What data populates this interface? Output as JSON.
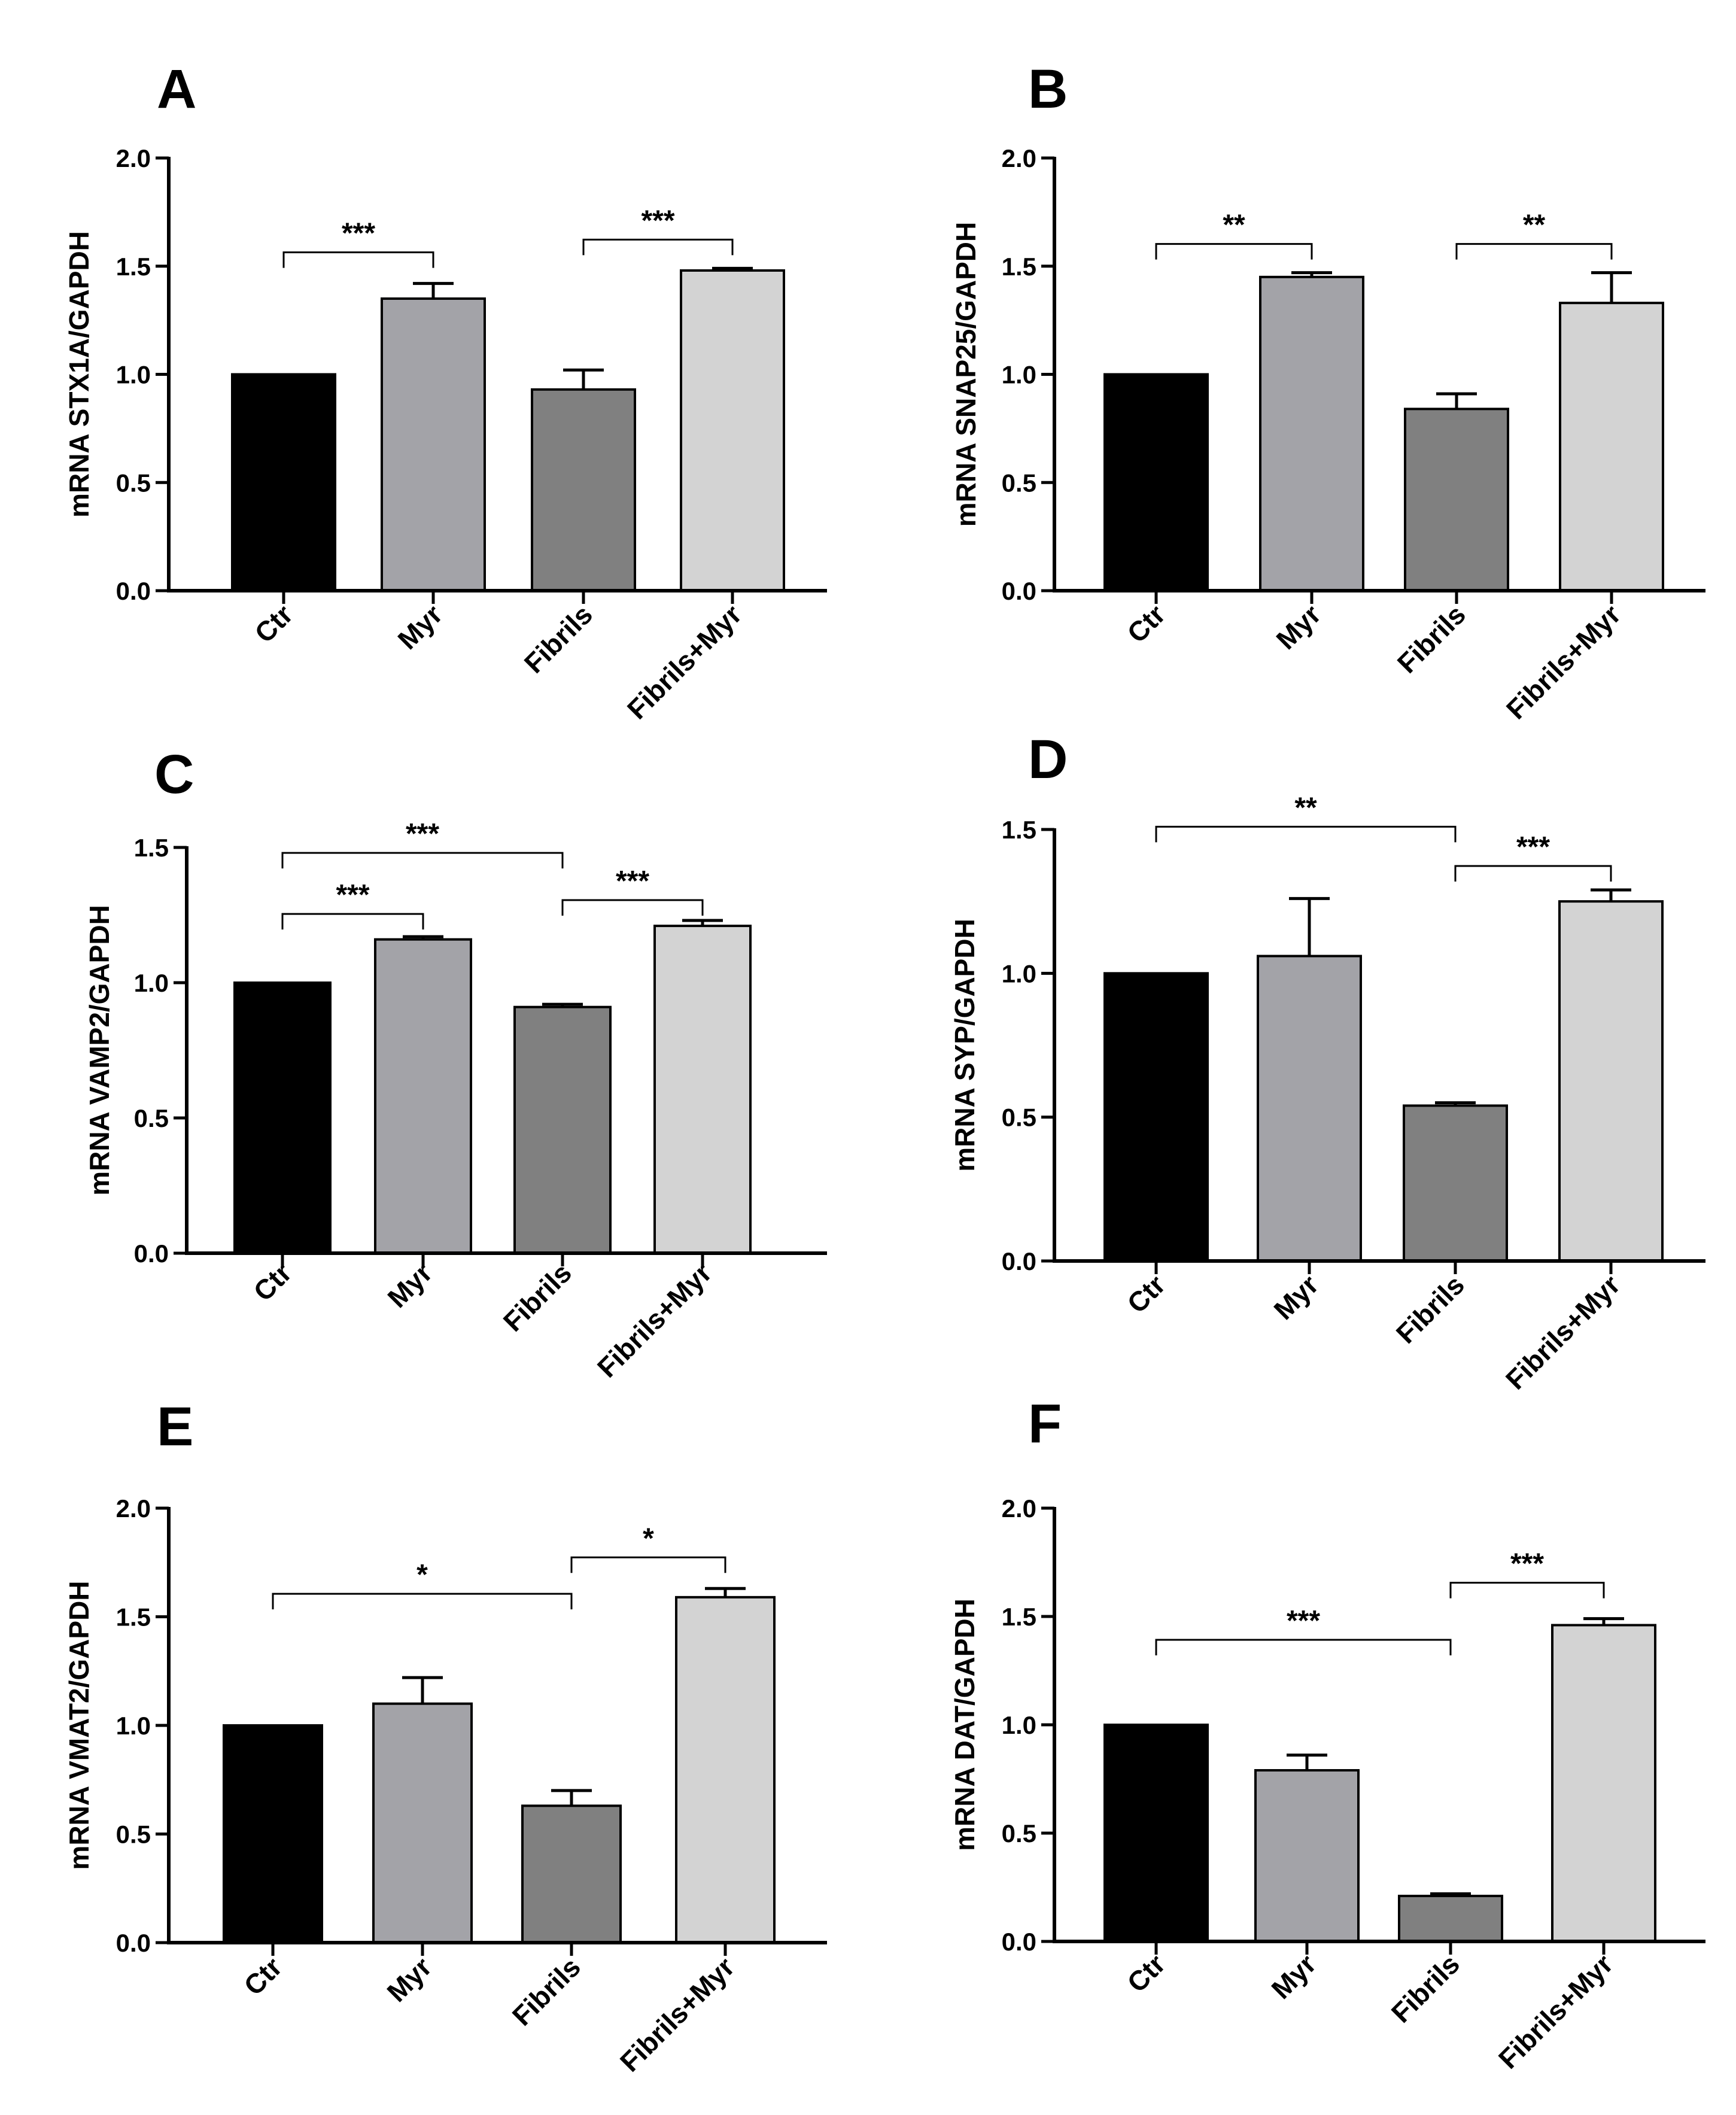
{
  "chart_data": [
    {
      "type": "bar",
      "panel": "A",
      "ylabel": "mRNA STX1A/GAPDH",
      "ylim": [
        0,
        2.0
      ],
      "yticks": [
        "0.0",
        "0.5",
        "1.0",
        "1.5",
        "2.0"
      ],
      "categories": [
        "Ctr",
        "Myr",
        "Fibrils",
        "Fibrils+Myr"
      ],
      "values": [
        1.0,
        1.35,
        0.93,
        1.48
      ],
      "errors": [
        0,
        0.07,
        0.09,
        0.01
      ],
      "colors": [
        "#000000",
        "#a3a3a8",
        "#808080",
        "#d3d3d3"
      ],
      "significance": [
        {
          "from": 0,
          "to": 1,
          "label": "***"
        },
        {
          "from": 2,
          "to": 3,
          "label": "***"
        }
      ]
    },
    {
      "type": "bar",
      "panel": "B",
      "ylabel": "mRNA SNAP25/GAPDH",
      "ylim": [
        0,
        2.0
      ],
      "yticks": [
        "0.0",
        "0.5",
        "1.0",
        "1.5",
        "2.0"
      ],
      "categories": [
        "Ctr",
        "Myr",
        "Fibrils",
        "Fibrils+Myr"
      ],
      "values": [
        1.0,
        1.45,
        0.84,
        1.33
      ],
      "errors": [
        0,
        0.02,
        0.07,
        0.14
      ],
      "colors": [
        "#000000",
        "#a3a3a8",
        "#808080",
        "#d3d3d3"
      ],
      "significance": [
        {
          "from": 0,
          "to": 1,
          "label": "**"
        },
        {
          "from": 2,
          "to": 3,
          "label": "**"
        }
      ]
    },
    {
      "type": "bar",
      "panel": "C",
      "ylabel": "mRNA VAMP2/GAPDH",
      "ylim": [
        0,
        1.5
      ],
      "yticks": [
        "0.0",
        "0.5",
        "1.0",
        "1.5"
      ],
      "categories": [
        "Ctr",
        "Myr",
        "Fibrils",
        "Fibrils+Myr"
      ],
      "values": [
        1.0,
        1.16,
        0.91,
        1.21
      ],
      "errors": [
        0,
        0.01,
        0.01,
        0.02
      ],
      "colors": [
        "#000000",
        "#a3a3a8",
        "#808080",
        "#d3d3d3"
      ],
      "significance": [
        {
          "from": 0,
          "to": 1,
          "label": "***"
        },
        {
          "from": 0,
          "to": 2,
          "label": "***"
        },
        {
          "from": 2,
          "to": 3,
          "label": "***"
        }
      ]
    },
    {
      "type": "bar",
      "panel": "D",
      "ylabel": "mRNA SYP/GAPDH",
      "ylim": [
        0,
        1.5
      ],
      "yticks": [
        "0.0",
        "0.5",
        "1.0",
        "1.5"
      ],
      "categories": [
        "Ctr",
        "Myr",
        "Fibrils",
        "Fibrils+Myr"
      ],
      "values": [
        1.0,
        1.06,
        0.54,
        1.25
      ],
      "errors": [
        0,
        0.2,
        0.01,
        0.04
      ],
      "colors": [
        "#000000",
        "#a3a3a8",
        "#808080",
        "#d3d3d3"
      ],
      "significance": [
        {
          "from": 0,
          "to": 2,
          "label": "**"
        },
        {
          "from": 2,
          "to": 3,
          "label": "***"
        }
      ]
    },
    {
      "type": "bar",
      "panel": "E",
      "ylabel": "mRNA VMAT2/GAPDH",
      "ylim": [
        0,
        2.0
      ],
      "yticks": [
        "0.0",
        "0.5",
        "1.0",
        "1.5",
        "2.0"
      ],
      "categories": [
        "Ctr",
        "Myr",
        "Fibrils",
        "Fibrils+Myr"
      ],
      "values": [
        1.0,
        1.1,
        0.63,
        1.59
      ],
      "errors": [
        0,
        0.12,
        0.07,
        0.04
      ],
      "colors": [
        "#000000",
        "#a3a3a8",
        "#808080",
        "#d3d3d3"
      ],
      "significance": [
        {
          "from": 0,
          "to": 2,
          "label": "*"
        },
        {
          "from": 2,
          "to": 3,
          "label": "*"
        }
      ]
    },
    {
      "type": "bar",
      "panel": "F",
      "ylabel": "mRNA DAT/GAPDH",
      "ylim": [
        0,
        2.0
      ],
      "yticks": [
        "0.0",
        "0.5",
        "1.0",
        "1.5",
        "2.0"
      ],
      "categories": [
        "Ctr",
        "Myr",
        "Fibrils",
        "Fibrils+Myr"
      ],
      "values": [
        1.0,
        0.79,
        0.21,
        1.46
      ],
      "errors": [
        0,
        0.07,
        0.01,
        0.03
      ],
      "colors": [
        "#000000",
        "#a3a3a8",
        "#808080",
        "#d3d3d3"
      ],
      "significance": [
        {
          "from": 0,
          "to": 2,
          "label": "***"
        },
        {
          "from": 2,
          "to": 3,
          "label": "***"
        }
      ]
    }
  ]
}
